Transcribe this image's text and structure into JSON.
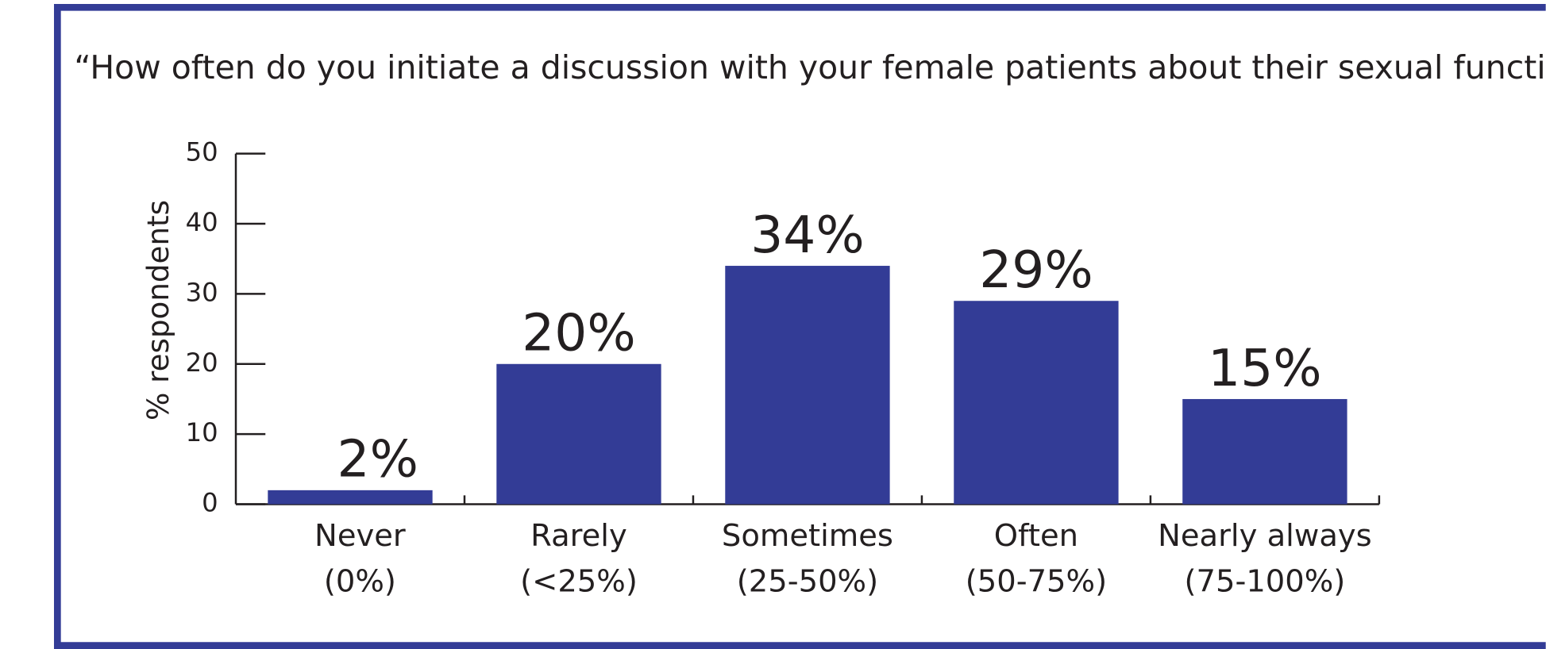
{
  "chart_data": {
    "type": "bar",
    "title": "“How often do you initiate a discussion with your female patients about their sexual function?",
    "y_label": "% respondents",
    "categories": [
      [
        "Never",
        "(0%)"
      ],
      [
        "Rarely",
        "(<25%)"
      ],
      [
        "Sometimes",
        "(25-50%)"
      ],
      [
        "Often",
        "(50-75%)"
      ],
      [
        "Nearly always",
        "(75-100%)"
      ]
    ],
    "values": [
      2,
      20,
      34,
      29,
      15
    ],
    "value_labels": [
      "2%",
      "20%",
      "34%",
      "29%",
      "15%"
    ],
    "color": "#333c96",
    "ylim": [
      0,
      50
    ],
    "yticks": [
      0,
      10,
      20,
      30,
      40,
      50
    ]
  }
}
